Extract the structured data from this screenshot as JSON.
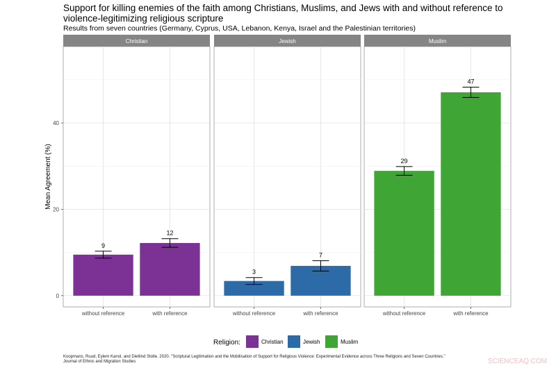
{
  "chart_data": {
    "type": "bar",
    "title": "Support for killing enemies of the faith among Christians, Muslims, and Jews with and without reference to violence-legitimizing religious scripture",
    "subtitle": "Results from seven countries (Germany, Cyprus, USA, Lebanon, Kenya, Israel and the Palestinian territories)",
    "ylabel": "Mean Agreement (%)",
    "xlabel": "",
    "ylim": [
      -2.6,
      57.7
    ],
    "yticks": [
      0,
      20,
      40
    ],
    "grid": true,
    "categories": [
      "without reference",
      "with reference"
    ],
    "panels": [
      {
        "name": "Christian",
        "color": "#7B3294",
        "values": [
          9.5,
          12.2
        ],
        "errors": [
          0.8,
          1.0
        ],
        "labels": [
          "9",
          "12"
        ]
      },
      {
        "name": "Jewish",
        "color": "#2C6AA8",
        "values": [
          3.4,
          6.9
        ],
        "errors": [
          0.8,
          1.2
        ],
        "labels": [
          "3",
          "7"
        ]
      },
      {
        "name": "Muslim",
        "color": "#3FA535",
        "values": [
          28.9,
          47.1
        ],
        "errors": [
          1.0,
          1.2
        ],
        "labels": [
          "29",
          "47"
        ]
      }
    ],
    "legend": {
      "title": "Religion:",
      "position": "bottom",
      "entries": [
        "Christian",
        "Jewish",
        "Muslim"
      ]
    }
  },
  "citation": [
    "Koopmans, Ruud, Eylem Kanol, and Dietlind Stolle. 2020. \"Scriptural Legitimation and the Mobilisation of Support for Religious Violence: Experimental Evidence across Three Religions and Seven Countries.\"",
    "Journal of Ethnic and Migration Studies"
  ],
  "watermark": "SCIENCEAQ.COM"
}
